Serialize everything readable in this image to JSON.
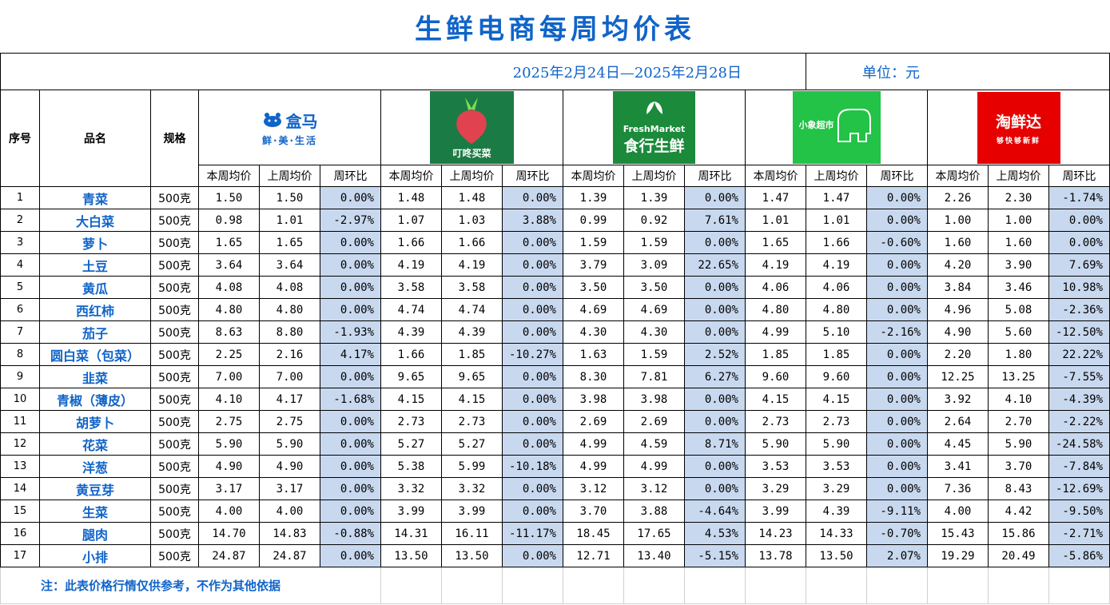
{
  "title": "生鲜电商每周均价表",
  "date_range": "2025年2月24日—2025年2月28日",
  "unit": "单位：元",
  "headers": {
    "seq": "序号",
    "name": "品名",
    "spec": "规格"
  },
  "sub_headers": [
    "本周均价",
    "上周均价",
    "周环比"
  ],
  "platforms": [
    {
      "logo": "hema-logo",
      "brand": "盒马",
      "slogan": "鲜·美·生活",
      "color": "#1064c8"
    },
    {
      "logo": "dingdong-logo",
      "brand": "叮咚买菜",
      "color": "#1b7b44"
    },
    {
      "logo": "freshmarket-logo",
      "brand_en": "FreshMarket",
      "brand": "食行生鲜",
      "color": "#1b8a3a"
    },
    {
      "logo": "xiaoxiang-logo",
      "brand": "小象超市",
      "color": "#22c346"
    },
    {
      "logo": "taoxianda-logo",
      "brand": "淘鲜达",
      "slogan": "够快够新鲜",
      "color": "#e60000"
    }
  ],
  "rows": [
    {
      "seq": "1",
      "name": "青菜",
      "spec": "500克",
      "p": [
        [
          "1.50",
          "1.50",
          "0.00%"
        ],
        [
          "1.48",
          "1.48",
          "0.00%"
        ],
        [
          "1.39",
          "1.39",
          "0.00%"
        ],
        [
          "1.47",
          "1.47",
          "0.00%"
        ],
        [
          "2.26",
          "2.30",
          "-1.74%"
        ]
      ]
    },
    {
      "seq": "2",
      "name": "大白菜",
      "spec": "500克",
      "p": [
        [
          "0.98",
          "1.01",
          "-2.97%"
        ],
        [
          "1.07",
          "1.03",
          "3.88%"
        ],
        [
          "0.99",
          "0.92",
          "7.61%"
        ],
        [
          "1.01",
          "1.01",
          "0.00%"
        ],
        [
          "1.00",
          "1.00",
          "0.00%"
        ]
      ]
    },
    {
      "seq": "3",
      "name": "萝卜",
      "spec": "500克",
      "p": [
        [
          "1.65",
          "1.65",
          "0.00%"
        ],
        [
          "1.66",
          "1.66",
          "0.00%"
        ],
        [
          "1.59",
          "1.59",
          "0.00%"
        ],
        [
          "1.65",
          "1.66",
          "-0.60%"
        ],
        [
          "1.60",
          "1.60",
          "0.00%"
        ]
      ]
    },
    {
      "seq": "4",
      "name": "土豆",
      "spec": "500克",
      "p": [
        [
          "3.64",
          "3.64",
          "0.00%"
        ],
        [
          "4.19",
          "4.19",
          "0.00%"
        ],
        [
          "3.79",
          "3.09",
          "22.65%"
        ],
        [
          "4.19",
          "4.19",
          "0.00%"
        ],
        [
          "4.20",
          "3.90",
          "7.69%"
        ]
      ]
    },
    {
      "seq": "5",
      "name": "黄瓜",
      "spec": "500克",
      "p": [
        [
          "4.08",
          "4.08",
          "0.00%"
        ],
        [
          "3.58",
          "3.58",
          "0.00%"
        ],
        [
          "3.50",
          "3.50",
          "0.00%"
        ],
        [
          "4.06",
          "4.06",
          "0.00%"
        ],
        [
          "3.84",
          "3.46",
          "10.98%"
        ]
      ]
    },
    {
      "seq": "6",
      "name": "西红柿",
      "spec": "500克",
      "p": [
        [
          "4.80",
          "4.80",
          "0.00%"
        ],
        [
          "4.74",
          "4.74",
          "0.00%"
        ],
        [
          "4.69",
          "4.69",
          "0.00%"
        ],
        [
          "4.80",
          "4.80",
          "0.00%"
        ],
        [
          "4.96",
          "5.08",
          "-2.36%"
        ]
      ]
    },
    {
      "seq": "7",
      "name": "茄子",
      "spec": "500克",
      "p": [
        [
          "8.63",
          "8.80",
          "-1.93%"
        ],
        [
          "4.39",
          "4.39",
          "0.00%"
        ],
        [
          "4.30",
          "4.30",
          "0.00%"
        ],
        [
          "4.99",
          "5.10",
          "-2.16%"
        ],
        [
          "4.90",
          "5.60",
          "-12.50%"
        ]
      ]
    },
    {
      "seq": "8",
      "name": "圆白菜（包菜）",
      "spec": "500克",
      "p": [
        [
          "2.25",
          "2.16",
          "4.17%"
        ],
        [
          "1.66",
          "1.85",
          "-10.27%"
        ],
        [
          "1.63",
          "1.59",
          "2.52%"
        ],
        [
          "1.85",
          "1.85",
          "0.00%"
        ],
        [
          "2.20",
          "1.80",
          "22.22%"
        ]
      ]
    },
    {
      "seq": "9",
      "name": "韭菜",
      "spec": "500克",
      "p": [
        [
          "7.00",
          "7.00",
          "0.00%"
        ],
        [
          "9.65",
          "9.65",
          "0.00%"
        ],
        [
          "8.30",
          "7.81",
          "6.27%"
        ],
        [
          "9.60",
          "9.60",
          "0.00%"
        ],
        [
          "12.25",
          "13.25",
          "-7.55%"
        ]
      ]
    },
    {
      "seq": "10",
      "name": "青椒（薄皮）",
      "spec": "500克",
      "p": [
        [
          "4.10",
          "4.17",
          "-1.68%"
        ],
        [
          "4.15",
          "4.15",
          "0.00%"
        ],
        [
          "3.98",
          "3.98",
          "0.00%"
        ],
        [
          "4.15",
          "4.15",
          "0.00%"
        ],
        [
          "3.92",
          "4.10",
          "-4.39%"
        ]
      ]
    },
    {
      "seq": "11",
      "name": "胡萝卜",
      "spec": "500克",
      "p": [
        [
          "2.75",
          "2.75",
          "0.00%"
        ],
        [
          "2.73",
          "2.73",
          "0.00%"
        ],
        [
          "2.69",
          "2.69",
          "0.00%"
        ],
        [
          "2.73",
          "2.73",
          "0.00%"
        ],
        [
          "2.64",
          "2.70",
          "-2.22%"
        ]
      ]
    },
    {
      "seq": "12",
      "name": "花菜",
      "spec": "500克",
      "p": [
        [
          "5.90",
          "5.90",
          "0.00%"
        ],
        [
          "5.27",
          "5.27",
          "0.00%"
        ],
        [
          "4.99",
          "4.59",
          "8.71%"
        ],
        [
          "5.90",
          "5.90",
          "0.00%"
        ],
        [
          "4.45",
          "5.90",
          "-24.58%"
        ]
      ]
    },
    {
      "seq": "13",
      "name": "洋葱",
      "spec": "500克",
      "p": [
        [
          "4.90",
          "4.90",
          "0.00%"
        ],
        [
          "5.38",
          "5.99",
          "-10.18%"
        ],
        [
          "4.99",
          "4.99",
          "0.00%"
        ],
        [
          "3.53",
          "3.53",
          "0.00%"
        ],
        [
          "3.41",
          "3.70",
          "-7.84%"
        ]
      ]
    },
    {
      "seq": "14",
      "name": "黄豆芽",
      "spec": "500克",
      "p": [
        [
          "3.17",
          "3.17",
          "0.00%"
        ],
        [
          "3.32",
          "3.32",
          "0.00%"
        ],
        [
          "3.12",
          "3.12",
          "0.00%"
        ],
        [
          "3.29",
          "3.29",
          "0.00%"
        ],
        [
          "7.36",
          "8.43",
          "-12.69%"
        ]
      ]
    },
    {
      "seq": "15",
      "name": "生菜",
      "spec": "500克",
      "p": [
        [
          "4.00",
          "4.00",
          "0.00%"
        ],
        [
          "3.99",
          "3.99",
          "0.00%"
        ],
        [
          "3.70",
          "3.88",
          "-4.64%"
        ],
        [
          "3.99",
          "4.39",
          "-9.11%"
        ],
        [
          "4.00",
          "4.42",
          "-9.50%"
        ]
      ]
    },
    {
      "seq": "16",
      "name": "腿肉",
      "spec": "500克",
      "p": [
        [
          "14.70",
          "14.83",
          "-0.88%"
        ],
        [
          "14.31",
          "16.11",
          "-11.17%"
        ],
        [
          "18.45",
          "17.65",
          "4.53%"
        ],
        [
          "14.23",
          "14.33",
          "-0.70%"
        ],
        [
          "15.43",
          "15.86",
          "-2.71%"
        ]
      ]
    },
    {
      "seq": "17",
      "name": "小排",
      "spec": "500克",
      "p": [
        [
          "24.87",
          "24.87",
          "0.00%"
        ],
        [
          "13.50",
          "13.50",
          "0.00%"
        ],
        [
          "12.71",
          "13.40",
          "-5.15%"
        ],
        [
          "13.78",
          "13.50",
          "2.07%"
        ],
        [
          "19.29",
          "20.49",
          "-5.86%"
        ]
      ]
    }
  ],
  "note": "注：此表价格行情仅供参考，不作为其他依据"
}
